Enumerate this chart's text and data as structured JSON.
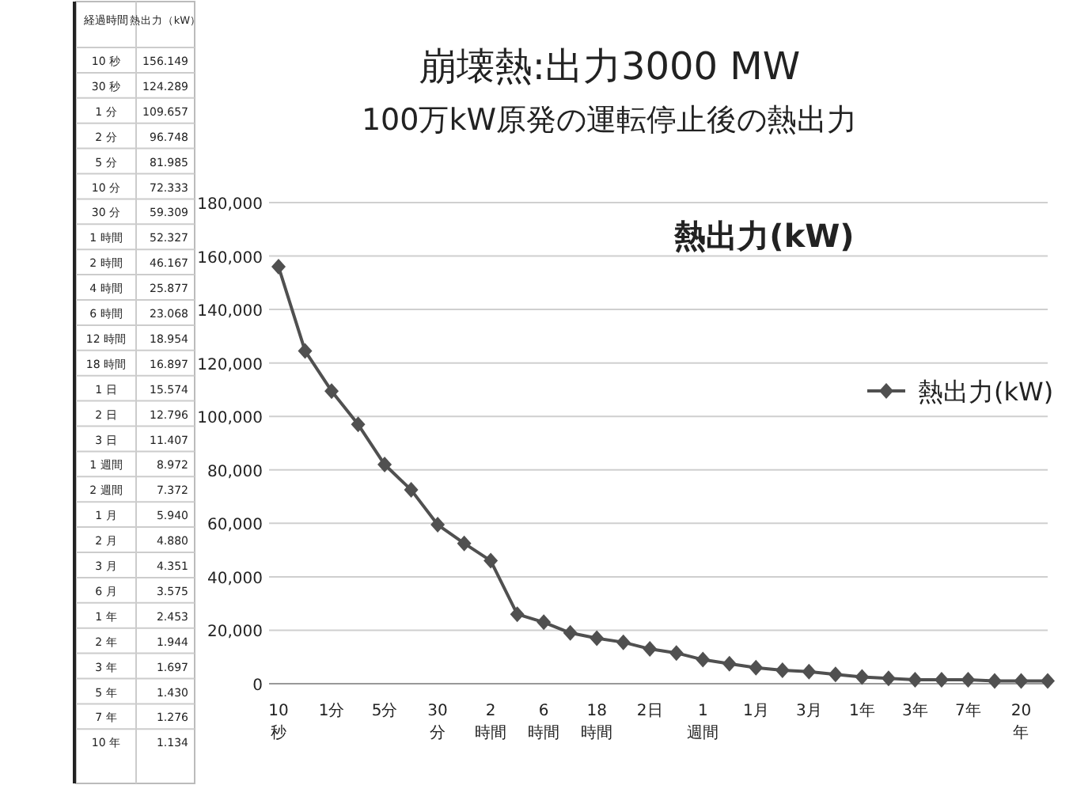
{
  "chart_data": [
    {
      "type": "other",
      "annotations": [
        "経過時間",
        "熱出力（kW）",
        "10 秒",
        "156.149",
        "30 秒",
        "124.289",
        "1 分",
        "109.657",
        "2 分",
        "96.748",
        "5 分",
        "81.985",
        "10 分",
        "72.333",
        "30 分",
        "59.309",
        "1 時間",
        "52.327",
        "2 時間",
        "46.167",
        "4 時間",
        "25.877",
        "6 時間",
        "23.068",
        "12 時間",
        "18.954",
        "18 時間",
        "16.897",
        "1 日",
        "15.574",
        "2 日",
        "12.796",
        "3 日",
        "11.407",
        "1 週間",
        "8.972",
        "2 週間",
        "7.372",
        "1 月",
        "5.940",
        "2 月",
        "4.880",
        "3 月",
        "4.351",
        "6 月",
        "3.575",
        "1 年",
        "2.453",
        "2 年",
        "1.944",
        "3 年",
        "1.697",
        "5 年",
        "1.430",
        "7 年",
        "1.276",
        "10 年",
        "1.134"
      ]
    },
    {
      "type": "line",
      "title": "崩壊熱:出力3000 MW",
      "subtitle": "100万kW原発の運転停止後の熱出力",
      "annotations": [
        "熱出力(kW)"
      ],
      "categories": [
        "10秒",
        null,
        "1分",
        null,
        "5分",
        null,
        "30分",
        null,
        "2時間",
        null,
        "6時間",
        null,
        "18時間",
        null,
        "2日",
        null,
        "1週間",
        null,
        "1月",
        null,
        "3月",
        null,
        "1年",
        null,
        "3年",
        null,
        "7年",
        null,
        "20年",
        null
      ],
      "series": [
        {
          "name": "熱出力(kW)",
          "color": "#505050",
          "values": [
            156000,
            124500,
            109500,
            97000,
            82000,
            72500,
            59500,
            52500,
            46000,
            26000,
            23000,
            19000,
            17000,
            15500,
            13000,
            11500,
            9000,
            7500,
            6000,
            5000,
            4500,
            3500,
            2500,
            2000,
            1500,
            1500,
            1500,
            1000,
            1000,
            1000
          ]
        }
      ],
      "ylim": [
        0,
        180000
      ],
      "yticks": [
        {
          "value": 0,
          "label": "0"
        },
        {
          "value": 20000,
          "label": "20,000"
        },
        {
          "value": 40000,
          "label": "40,000"
        },
        {
          "value": 60000,
          "label": "60,000"
        },
        {
          "value": 80000,
          "label": "80,000"
        },
        {
          "value": 100000,
          "label": "100,000"
        },
        {
          "value": 120000,
          "label": "120,000"
        },
        {
          "value": 140000,
          "label": "140,000"
        },
        {
          "value": 160000,
          "label": "160,000"
        },
        {
          "value": 180000,
          "label": "180,000"
        }
      ],
      "grid": "y",
      "legend": "right",
      "marker": "diamond",
      "line_style": "solid"
    }
  ]
}
